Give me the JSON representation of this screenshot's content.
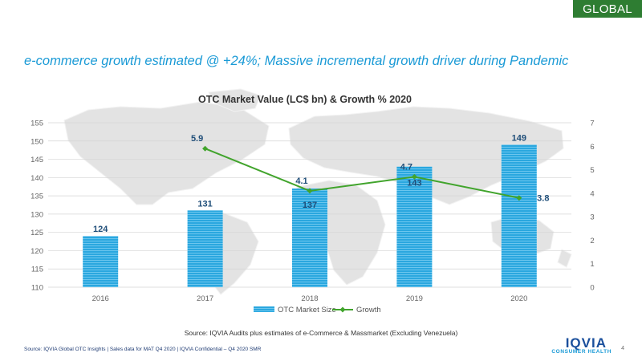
{
  "badge": "GLOBAL",
  "headline": "e-commerce growth estimated @ +24%; Massive incremental growth driver during Pandemic",
  "source_center": "Source: IQVIA Audits plus estimates of e-Commerce & Massmarket  (Excluding Venezuela)",
  "footer": "Source: IQVIA Global OTC Insights | Sales data for MAT Q4 2020 | IQVIA Confidential  – Q4 2020 SMR",
  "page_number": "4",
  "logo": {
    "mark": "IQVIA",
    "sub": "CONSUMER HEALTH"
  },
  "colors": {
    "bar": "#2aa7df",
    "line": "#41a42c",
    "label": "#1f4e79",
    "headline": "#1a9ad6",
    "badge": "#2e7d32"
  },
  "chart_data": {
    "type": "bar",
    "title": "OTC Market Value (LC$ bn) & Growth % 2020",
    "categories": [
      "2016",
      "2017",
      "2018",
      "2019",
      "2020"
    ],
    "series": [
      {
        "name": "OTC Market Size",
        "type": "bar",
        "axis": "left",
        "values": [
          124,
          131,
          137,
          143,
          149
        ]
      },
      {
        "name": "Growth",
        "type": "line",
        "axis": "right",
        "values": [
          null,
          5.9,
          4.1,
          4.7,
          3.8
        ]
      }
    ],
    "ylim_left": [
      110,
      155
    ],
    "yticks_left": [
      110,
      115,
      120,
      125,
      130,
      135,
      140,
      145,
      150,
      155
    ],
    "ylim_right": [
      0,
      7
    ],
    "yticks_right": [
      0,
      1,
      2,
      3,
      4,
      5,
      6,
      7
    ],
    "legend_position": "bottom",
    "grid": true
  }
}
